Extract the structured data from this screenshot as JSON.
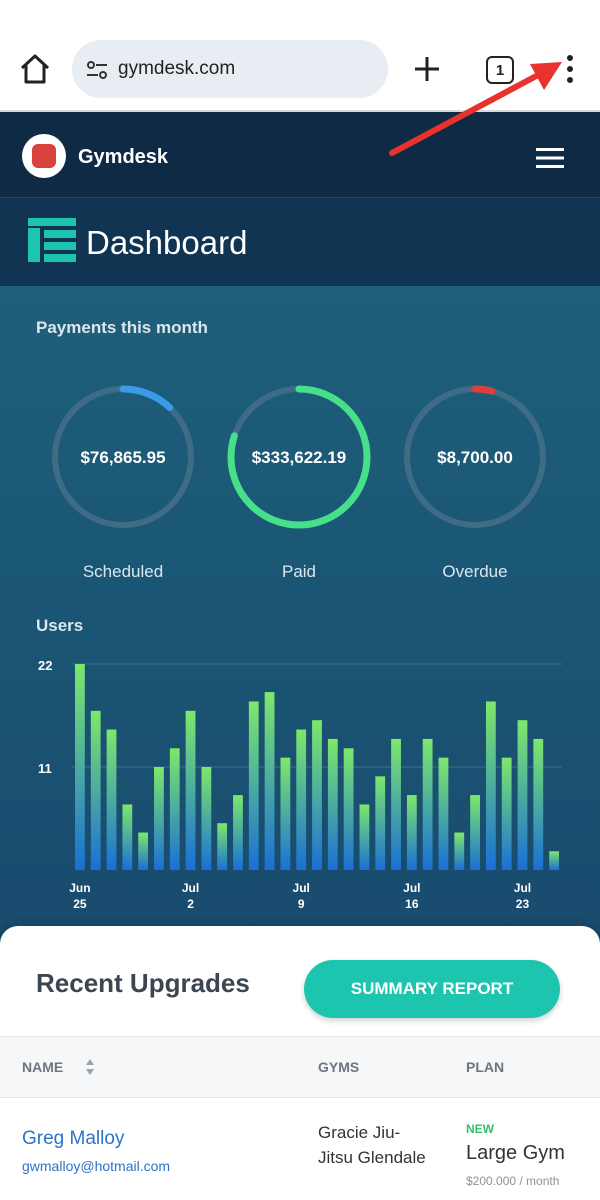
{
  "browser": {
    "url": "gymdesk.com",
    "tab_count": "1"
  },
  "app": {
    "brand": "Gymdesk",
    "page_title": "Dashboard"
  },
  "payments": {
    "label": "Payments this month",
    "items": [
      {
        "label": "Scheduled",
        "value": "$76,865.95",
        "arc_fraction": 0.12,
        "color": "#3a9be6"
      },
      {
        "label": "Paid",
        "value": "$333,622.19",
        "arc_fraction": 0.8,
        "color": "#47e08a"
      },
      {
        "label": "Overdue",
        "value": "$8,700.00",
        "arc_fraction": 0.04,
        "color": "#d9423a"
      }
    ]
  },
  "chart_data": {
    "type": "bar",
    "title": "Users",
    "ylim": [
      0,
      22
    ],
    "yticks": [
      "22",
      "11"
    ],
    "xticks": [
      {
        "index": 0,
        "month": "Jun",
        "day": "25"
      },
      {
        "index": 7,
        "month": "Jul",
        "day": "2"
      },
      {
        "index": 14,
        "month": "Jul",
        "day": "9"
      },
      {
        "index": 21,
        "month": "Jul",
        "day": "16"
      },
      {
        "index": 28,
        "month": "Jul",
        "day": "23"
      }
    ],
    "values": [
      22,
      17,
      15,
      7,
      4,
      11,
      13,
      17,
      11,
      5,
      8,
      18,
      19,
      12,
      15,
      16,
      14,
      13,
      7,
      10,
      14,
      8,
      14,
      12,
      4,
      8,
      18,
      12,
      16,
      14,
      2
    ],
    "colors": [
      "#7ee86a",
      "#1a6fd6"
    ]
  },
  "upgrades": {
    "title": "Recent Upgrades",
    "summary_button": "SUMMARY REPORT",
    "columns": {
      "name": "NAME",
      "gyms": "GYMS",
      "plan": "PLAN"
    },
    "rows": [
      {
        "name": "Greg Malloy",
        "email": "gwmalloy@hotmail.com",
        "gym": "Gracie Jiu-Jitsu Glendale",
        "badge": "NEW",
        "plan": "Large Gym",
        "price": "$200.000 / month"
      }
    ]
  }
}
